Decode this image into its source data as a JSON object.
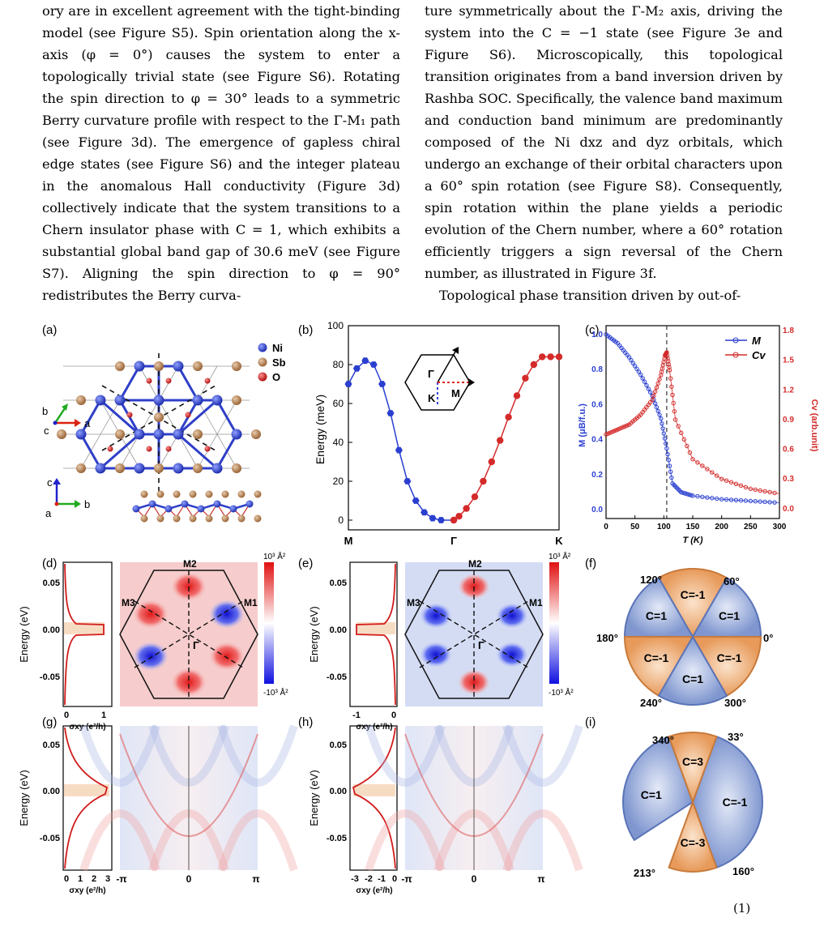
{
  "text": {
    "left_column": "ory are in excellent agreement with the tight-binding model (see Figure S5). Spin orientation along the x-axis (φ = 0°) causes the system to enter a topologically trivial state (see Figure S6). Rotating the spin direction to φ = 30° leads to a symmetric Berry curvature profile with respect to the Γ-M₁ path (see Figure 3d). The emergence of gapless chiral edge states (see Figure S6) and the integer plateau in the anomalous Hall conductivity (Figure 3d) collectively indicate that the system transitions to a Chern insulator phase with C = 1, which exhibits a substantial global band gap of 30.6 meV (see Figure S7). Aligning the spin direction to φ = 90° redistributes the Berry curva-",
    "right_column": "ture symmetrically about the Γ-M₂ axis, driving the system into the C = −1 state (see Figure 3e and Figure S6). Microscopically, this topological transition originates from a band inversion driven by Rashba SOC. Specifically, the valence band maximum and conduction band minimum are predominantly composed of the Ni dxz and dyz orbitals, which undergo an exchange of their orbital characters upon a 60° spin rotation (see Figure S8). Consequently, spin rotation within the plane yields a periodic evolution of the Chern number, where a 60° rotation efficiently triggers a sign reversal of the Chern number, as illustrated in Figure 3f.",
    "right_column_next": "Topological phase transition driven by out-of-",
    "caption_fragment": "(1)"
  },
  "panels": {
    "a": "(a)",
    "b": "(b)",
    "c": "(c)",
    "d": "(d)",
    "e": "(e)",
    "f": "(f)",
    "g": "(g)",
    "h": "(h)",
    "i": "(i)"
  },
  "panel_a": {
    "legend": [
      "Ni",
      "Sb",
      "O"
    ],
    "legend_colors": [
      "#2f3fc8",
      "#b07a4a",
      "#c81e1e"
    ],
    "axes_top": [
      "b",
      "c",
      "a"
    ],
    "axes_bottom": [
      "c",
      "a",
      "b"
    ]
  },
  "chart_data": [
    {
      "panel": "b",
      "type": "line",
      "ylabel": "Energy (meV)",
      "ylim": [
        -5,
        100
      ],
      "yticks": [
        "0",
        "20",
        "40",
        "60",
        "80",
        "100"
      ],
      "xticks": [
        "M",
        "Γ",
        "K"
      ],
      "inset_labels": [
        "Γ",
        "K",
        "M"
      ],
      "series": [
        {
          "color": "#2a3fd0",
          "x": [
            0,
            0.08,
            0.16,
            0.24,
            0.32,
            0.4,
            0.48,
            0.56,
            0.64,
            0.72,
            0.8,
            0.88,
            1.0
          ],
          "y": [
            70,
            78,
            82,
            80,
            70,
            55,
            36,
            20,
            10,
            4,
            1,
            0,
            0
          ]
        },
        {
          "color": "#d42a2a",
          "x": [
            1.0,
            1.05,
            1.12,
            1.2,
            1.28,
            1.36,
            1.44,
            1.52,
            1.6,
            1.68,
            1.76,
            1.84,
            1.92,
            2.0
          ],
          "y": [
            0,
            2,
            6,
            12,
            20,
            30,
            41,
            53,
            64,
            73,
            80,
            84,
            84,
            84
          ]
        }
      ]
    },
    {
      "panel": "c",
      "type": "scatter",
      "xlabel": "T (K)",
      "ylabel_left": "M (μB/f.u.)",
      "ylabel_right": "Cv (arb.unit)",
      "xlim": [
        0,
        300
      ],
      "xticks": [
        "0",
        "50",
        "100",
        "150",
        "200",
        "250",
        "300"
      ],
      "yticks_left": [
        "0.0",
        "0.2",
        "0.4",
        "0.6",
        "0.8",
        "1.0"
      ],
      "yticks_right": [
        "0.0",
        "0.3",
        "0.6",
        "0.9",
        "1.2",
        "1.5",
        "1.8"
      ],
      "legend": [
        "M",
        "Cv"
      ],
      "legend_placement": "top-right",
      "transition_T": 105,
      "series": [
        {
          "name": "M",
          "color": "#2a3fd0",
          "x": [
            0,
            20,
            40,
            60,
            80,
            95,
            105,
            115,
            130,
            150,
            200,
            250,
            300
          ],
          "y": [
            1.0,
            0.95,
            0.87,
            0.77,
            0.65,
            0.52,
            0.35,
            0.15,
            0.1,
            0.08,
            0.06,
            0.05,
            0.04
          ]
        },
        {
          "name": "Cv",
          "color": "#d42a2a",
          "x": [
            0,
            20,
            40,
            60,
            80,
            95,
            102,
            105,
            110,
            120,
            150,
            200,
            250,
            300
          ],
          "y": [
            0.75,
            0.8,
            0.85,
            0.95,
            1.1,
            1.35,
            1.55,
            1.58,
            1.4,
            0.9,
            0.5,
            0.3,
            0.2,
            0.15
          ]
        }
      ]
    }
  ],
  "panel_d": {
    "ylabel": "Energy (eV)",
    "xlabel": "σxy (e²/h)",
    "yticks": [
      "0.05",
      "0.00",
      "-0.05"
    ],
    "xticks": [
      "0",
      "1"
    ],
    "bz_labels": [
      "M2",
      "M3",
      "M1",
      "Γ"
    ],
    "colorbar": [
      "10³ Å²",
      "-10³ Å²"
    ]
  },
  "panel_e": {
    "ylabel": "Energy (eV)",
    "xlabel": "σxy (e²/h)",
    "yticks": [
      "0.05",
      "0.00",
      "-0.05"
    ],
    "xticks": [
      "-1",
      "0"
    ],
    "bz_labels": [
      "M2",
      "M3",
      "M1",
      "Γ"
    ],
    "colorbar": [
      "10³ Å²",
      "-10³ Å²"
    ]
  },
  "panel_g": {
    "ylabel": "Energy (eV)",
    "xlabel": "σxy (e²/h)",
    "yticks": [
      "0.05",
      "0.00",
      "-0.05"
    ],
    "xticks": [
      "0",
      "1",
      "2",
      "3"
    ],
    "kticks": [
      "-π",
      "0",
      "π"
    ]
  },
  "panel_h": {
    "ylabel": "Energy (eV)",
    "xlabel": "σxy (e²/h)",
    "yticks": [
      "0.05",
      "0.00",
      "-0.05"
    ],
    "xticks": [
      "-3",
      "-2",
      "-1",
      "0"
    ],
    "kticks": [
      "-π",
      "0",
      "π"
    ]
  },
  "panel_f": {
    "angles": [
      "120°",
      "60°",
      "180°",
      "0°",
      "240°",
      "300°"
    ],
    "sectors": [
      "C=-1",
      "C=1",
      "C=1",
      "C=-1",
      "C=-1",
      "C=1"
    ],
    "colors": {
      "pos": "#b9c8e8",
      "neg": "#f0b98a"
    }
  },
  "panel_i": {
    "angles": [
      "340°",
      "33°",
      "213°",
      "160°"
    ],
    "sectors": [
      "C=3",
      "C=1",
      "C=-1",
      "C=-3"
    ]
  }
}
